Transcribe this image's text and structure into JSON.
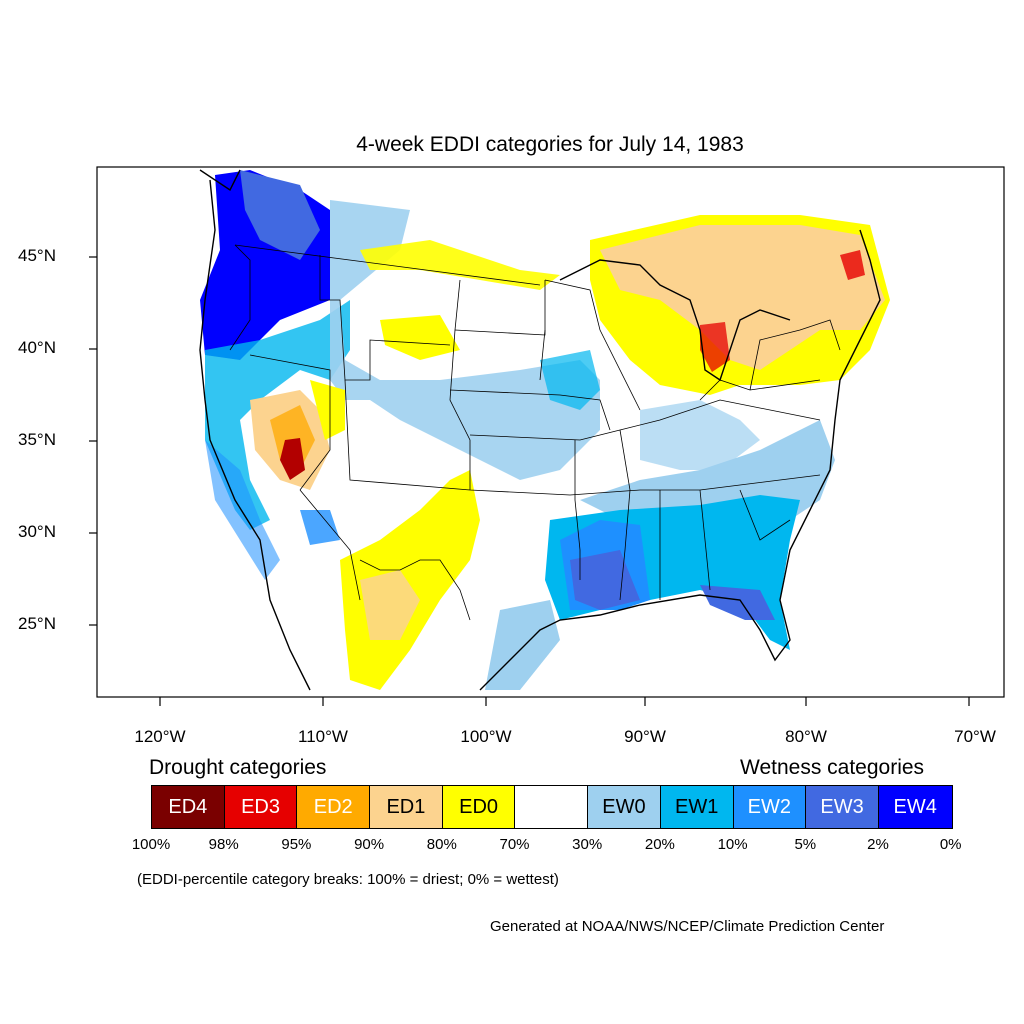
{
  "title": "4-week EDDI categories for July 14, 1983",
  "lat_labels": [
    "45°N",
    "40°N",
    "35°N",
    "30°N",
    "25°N"
  ],
  "lon_labels": [
    "120°W",
    "110°W",
    "100°W",
    "90°W",
    "80°W",
    "70°W"
  ],
  "legend": {
    "drought_title": "Drought categories",
    "wetness_title": "Wetness categories",
    "categories": [
      {
        "label": "ED4",
        "color": "#7a0000",
        "text_color": "#ffffff"
      },
      {
        "label": "ED3",
        "color": "#e60000",
        "text_color": "#ffffff"
      },
      {
        "label": "ED2",
        "color": "#ffaa00",
        "text_color": "#ffffff"
      },
      {
        "label": "ED1",
        "color": "#fcd38f",
        "text_color": "#000000"
      },
      {
        "label": "ED0",
        "color": "#ffff00",
        "text_color": "#000000"
      },
      {
        "label": "",
        "color": "#ffffff",
        "text_color": "#000000"
      },
      {
        "label": "EW0",
        "color": "#9ed0ef",
        "text_color": "#000000"
      },
      {
        "label": "EW1",
        "color": "#00b7ef",
        "text_color": "#000000"
      },
      {
        "label": "EW2",
        "color": "#1e90ff",
        "text_color": "#ffffff"
      },
      {
        "label": "EW3",
        "color": "#4169e1",
        "text_color": "#ffffff"
      },
      {
        "label": "EW4",
        "color": "#0000ff",
        "text_color": "#ffffff"
      }
    ],
    "ticks": [
      "100%",
      "98%",
      "95%",
      "90%",
      "80%",
      "70%",
      "30%",
      "20%",
      "10%",
      "5%",
      "2%",
      "0%"
    ]
  },
  "note": "(EDDI-percentile category breaks: 100% = driest; 0% = wettest)",
  "credit": "Generated at NOAA/NWS/NCEP/Climate Prediction Center"
}
